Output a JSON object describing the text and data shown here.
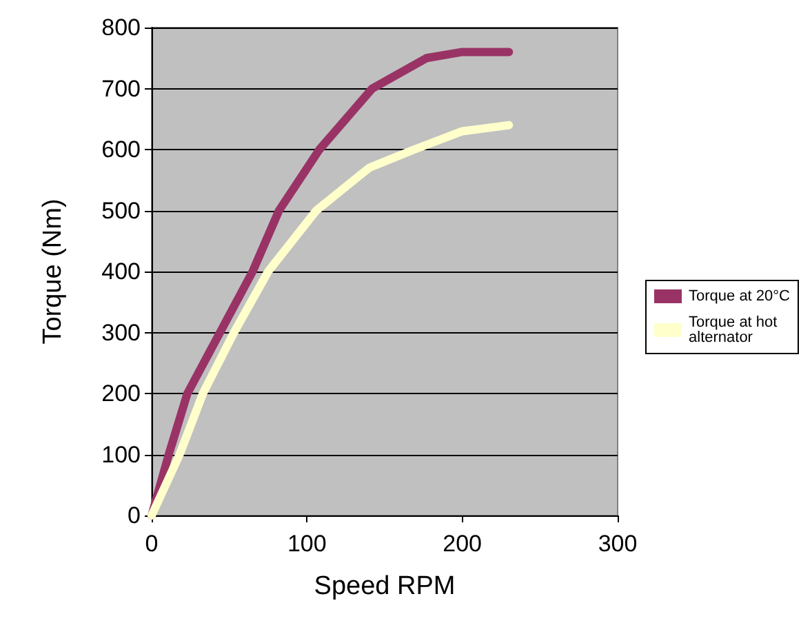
{
  "chart_data": {
    "type": "line",
    "xlabel": "Speed RPM",
    "ylabel": "Torque (Nm)",
    "xlim": [
      0,
      300
    ],
    "xticks": [
      0,
      100,
      200,
      300
    ],
    "ylim": [
      0,
      800
    ],
    "yticks": [
      0,
      100,
      200,
      300,
      400,
      500,
      600,
      700,
      800
    ],
    "grid": "y",
    "legend": "right",
    "line_style": "solid",
    "series": [
      {
        "name": "Torque at 20°C",
        "color": "#993366",
        "x": [
          0,
          11,
          23,
          44,
          65,
          82,
          108,
          142,
          177,
          200,
          230
        ],
        "values": [
          0,
          100,
          200,
          300,
          400,
          500,
          600,
          700,
          750,
          760,
          760
        ]
      },
      {
        "name": "Torque at hot alternator",
        "color": "#ffffcc",
        "x": [
          0,
          18,
          33,
          53,
          75,
          106,
          140,
          169,
          200,
          230
        ],
        "values": [
          0,
          100,
          200,
          300,
          400,
          500,
          570,
          600,
          630,
          640
        ]
      }
    ]
  }
}
